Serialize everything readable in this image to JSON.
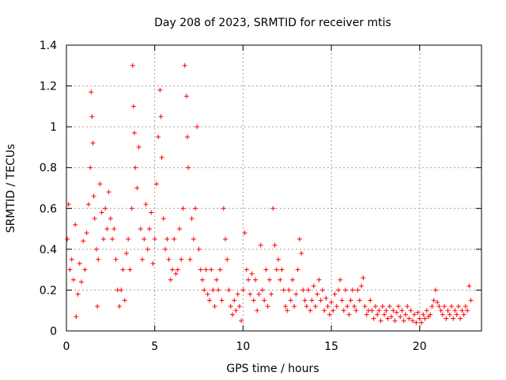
{
  "chart_data": {
    "type": "scatter",
    "title": "Day 208 of 2023, SRMTID for receiver mtis",
    "xlabel": "GPS time / hours",
    "ylabel": "SRMTID / TECUs",
    "xlim": [
      0,
      23.5
    ],
    "ylim": [
      0,
      1.4
    ],
    "xticks": [
      0,
      5,
      10,
      15,
      20
    ],
    "xtick_labels": [
      "0",
      "5",
      "10",
      "15",
      "20"
    ],
    "yticks": [
      0,
      0.2,
      0.4,
      0.6,
      0.8,
      1.0,
      1.2,
      1.4
    ],
    "ytick_labels": [
      "0",
      "0.2",
      "0.4",
      "0.6",
      "0.8",
      "1",
      "1.2",
      "1.4"
    ],
    "grid": true,
    "marker": "+",
    "color": "#ff0000",
    "series": [
      {
        "name": "SRMTID",
        "points": [
          [
            0.05,
            0.45
          ],
          [
            0.12,
            0.62
          ],
          [
            0.2,
            0.3
          ],
          [
            0.3,
            0.35
          ],
          [
            0.4,
            0.25
          ],
          [
            0.5,
            0.52
          ],
          [
            0.55,
            0.07
          ],
          [
            0.65,
            0.18
          ],
          [
            0.75,
            0.33
          ],
          [
            0.85,
            0.24
          ],
          [
            0.95,
            0.44
          ],
          [
            1.05,
            0.3
          ],
          [
            1.15,
            0.48
          ],
          [
            1.25,
            0.62
          ],
          [
            1.35,
            0.8
          ],
          [
            1.4,
            1.17
          ],
          [
            1.45,
            1.05
          ],
          [
            1.5,
            0.92
          ],
          [
            1.55,
            0.66
          ],
          [
            1.6,
            0.55
          ],
          [
            1.7,
            0.4
          ],
          [
            1.75,
            0.12
          ],
          [
            1.8,
            0.35
          ],
          [
            1.9,
            0.72
          ],
          [
            2.0,
            0.58
          ],
          [
            2.1,
            0.45
          ],
          [
            2.2,
            0.6
          ],
          [
            2.3,
            0.5
          ],
          [
            2.4,
            0.68
          ],
          [
            2.5,
            0.55
          ],
          [
            2.6,
            0.45
          ],
          [
            2.7,
            0.5
          ],
          [
            2.8,
            0.35
          ],
          [
            2.9,
            0.2
          ],
          [
            3.0,
            0.12
          ],
          [
            3.1,
            0.2
          ],
          [
            3.2,
            0.3
          ],
          [
            3.3,
            0.15
          ],
          [
            3.4,
            0.38
          ],
          [
            3.5,
            0.45
          ],
          [
            3.6,
            0.3
          ],
          [
            3.7,
            0.6
          ],
          [
            3.75,
            1.3
          ],
          [
            3.8,
            1.1
          ],
          [
            3.85,
            0.97
          ],
          [
            3.9,
            0.8
          ],
          [
            4.0,
            0.7
          ],
          [
            4.1,
            0.9
          ],
          [
            4.2,
            0.5
          ],
          [
            4.3,
            0.35
          ],
          [
            4.4,
            0.45
          ],
          [
            4.5,
            0.62
          ],
          [
            4.6,
            0.4
          ],
          [
            4.7,
            0.5
          ],
          [
            4.8,
            0.58
          ],
          [
            4.9,
            0.33
          ],
          [
            5.0,
            0.45
          ],
          [
            5.1,
            0.72
          ],
          [
            5.2,
            0.95
          ],
          [
            5.3,
            1.18
          ],
          [
            5.35,
            1.05
          ],
          [
            5.4,
            0.85
          ],
          [
            5.5,
            0.55
          ],
          [
            5.6,
            0.4
          ],
          [
            5.7,
            0.45
          ],
          [
            5.8,
            0.35
          ],
          [
            5.9,
            0.25
          ],
          [
            6.0,
            0.3
          ],
          [
            6.1,
            0.45
          ],
          [
            6.2,
            0.28
          ],
          [
            6.3,
            0.3
          ],
          [
            6.4,
            0.5
          ],
          [
            6.5,
            0.35
          ],
          [
            6.6,
            0.6
          ],
          [
            6.7,
            1.3
          ],
          [
            6.8,
            1.15
          ],
          [
            6.85,
            0.95
          ],
          [
            6.9,
            0.8
          ],
          [
            7.0,
            0.35
          ],
          [
            7.1,
            0.55
          ],
          [
            7.2,
            0.45
          ],
          [
            7.3,
            0.6
          ],
          [
            7.4,
            1.0
          ],
          [
            7.5,
            0.4
          ],
          [
            7.6,
            0.3
          ],
          [
            7.7,
            0.25
          ],
          [
            7.8,
            0.2
          ],
          [
            7.9,
            0.3
          ],
          [
            8.0,
            0.18
          ],
          [
            8.1,
            0.15
          ],
          [
            8.2,
            0.3
          ],
          [
            8.3,
            0.2
          ],
          [
            8.4,
            0.12
          ],
          [
            8.5,
            0.25
          ],
          [
            8.6,
            0.2
          ],
          [
            8.7,
            0.3
          ],
          [
            8.8,
            0.15
          ],
          [
            8.9,
            0.6
          ],
          [
            9.0,
            0.45
          ],
          [
            9.1,
            0.35
          ],
          [
            9.2,
            0.2
          ],
          [
            9.3,
            0.12
          ],
          [
            9.4,
            0.08
          ],
          [
            9.5,
            0.15
          ],
          [
            9.6,
            0.1
          ],
          [
            9.7,
            0.18
          ],
          [
            9.8,
            0.12
          ],
          [
            9.9,
            0.05
          ],
          [
            10.0,
            0.2
          ],
          [
            10.1,
            0.48
          ],
          [
            10.2,
            0.3
          ],
          [
            10.3,
            0.25
          ],
          [
            10.4,
            0.18
          ],
          [
            10.5,
            0.28
          ],
          [
            10.6,
            0.15
          ],
          [
            10.7,
            0.25
          ],
          [
            10.8,
            0.1
          ],
          [
            10.9,
            0.18
          ],
          [
            11.0,
            0.42
          ],
          [
            11.1,
            0.2
          ],
          [
            11.2,
            0.15
          ],
          [
            11.3,
            0.3
          ],
          [
            11.4,
            0.12
          ],
          [
            11.5,
            0.25
          ],
          [
            11.6,
            0.18
          ],
          [
            11.7,
            0.6
          ],
          [
            11.8,
            0.42
          ],
          [
            11.9,
            0.3
          ],
          [
            12.0,
            0.35
          ],
          [
            12.1,
            0.25
          ],
          [
            12.2,
            0.3
          ],
          [
            12.3,
            0.2
          ],
          [
            12.4,
            0.12
          ],
          [
            12.5,
            0.1
          ],
          [
            12.6,
            0.2
          ],
          [
            12.7,
            0.15
          ],
          [
            12.8,
            0.25
          ],
          [
            12.9,
            0.12
          ],
          [
            13.0,
            0.18
          ],
          [
            13.1,
            0.3
          ],
          [
            13.2,
            0.45
          ],
          [
            13.3,
            0.38
          ],
          [
            13.4,
            0.2
          ],
          [
            13.5,
            0.15
          ],
          [
            13.6,
            0.12
          ],
          [
            13.7,
            0.2
          ],
          [
            13.8,
            0.1
          ],
          [
            13.9,
            0.15
          ],
          [
            14.0,
            0.22
          ],
          [
            14.1,
            0.12
          ],
          [
            14.2,
            0.18
          ],
          [
            14.3,
            0.25
          ],
          [
            14.4,
            0.15
          ],
          [
            14.5,
            0.2
          ],
          [
            14.6,
            0.1
          ],
          [
            14.7,
            0.16
          ],
          [
            14.8,
            0.12
          ],
          [
            14.9,
            0.08
          ],
          [
            15.0,
            0.14
          ],
          [
            15.1,
            0.1
          ],
          [
            15.2,
            0.18
          ],
          [
            15.3,
            0.12
          ],
          [
            15.4,
            0.2
          ],
          [
            15.5,
            0.25
          ],
          [
            15.6,
            0.15
          ],
          [
            15.7,
            0.1
          ],
          [
            15.8,
            0.2
          ],
          [
            15.9,
            0.12
          ],
          [
            16.0,
            0.08
          ],
          [
            16.1,
            0.15
          ],
          [
            16.2,
            0.2
          ],
          [
            16.3,
            0.12
          ],
          [
            16.4,
            0.1
          ],
          [
            16.5,
            0.2
          ],
          [
            16.6,
            0.15
          ],
          [
            16.7,
            0.22
          ],
          [
            16.8,
            0.26
          ],
          [
            16.9,
            0.12
          ],
          [
            17.0,
            0.08
          ],
          [
            17.1,
            0.1
          ],
          [
            17.2,
            0.15
          ],
          [
            17.3,
            0.1
          ],
          [
            17.4,
            0.06
          ],
          [
            17.5,
            0.12
          ],
          [
            17.6,
            0.08
          ],
          [
            17.7,
            0.1
          ],
          [
            17.8,
            0.05
          ],
          [
            17.9,
            0.12
          ],
          [
            18.0,
            0.08
          ],
          [
            18.1,
            0.1
          ],
          [
            18.2,
            0.06
          ],
          [
            18.3,
            0.12
          ],
          [
            18.4,
            0.07
          ],
          [
            18.5,
            0.1
          ],
          [
            18.6,
            0.05
          ],
          [
            18.7,
            0.09
          ],
          [
            18.8,
            0.12
          ],
          [
            18.9,
            0.07
          ],
          [
            19.0,
            0.1
          ],
          [
            19.1,
            0.05
          ],
          [
            19.2,
            0.08
          ],
          [
            19.3,
            0.12
          ],
          [
            19.4,
            0.06
          ],
          [
            19.5,
            0.1
          ],
          [
            19.6,
            0.05
          ],
          [
            19.7,
            0.08
          ],
          [
            19.8,
            0.04
          ],
          [
            19.9,
            0.09
          ],
          [
            20.0,
            0.06
          ],
          [
            20.1,
            0.04
          ],
          [
            20.2,
            0.08
          ],
          [
            20.3,
            0.06
          ],
          [
            20.4,
            0.1
          ],
          [
            20.5,
            0.07
          ],
          [
            20.6,
            0.08
          ],
          [
            20.7,
            0.12
          ],
          [
            20.8,
            0.15
          ],
          [
            20.9,
            0.2
          ],
          [
            21.0,
            0.14
          ],
          [
            21.1,
            0.12
          ],
          [
            21.2,
            0.1
          ],
          [
            21.3,
            0.08
          ],
          [
            21.4,
            0.12
          ],
          [
            21.5,
            0.06
          ],
          [
            21.6,
            0.1
          ],
          [
            21.7,
            0.08
          ],
          [
            21.8,
            0.12
          ],
          [
            21.9,
            0.06
          ],
          [
            22.0,
            0.1
          ],
          [
            22.1,
            0.08
          ],
          [
            22.2,
            0.12
          ],
          [
            22.3,
            0.06
          ],
          [
            22.4,
            0.1
          ],
          [
            22.5,
            0.08
          ],
          [
            22.6,
            0.12
          ],
          [
            22.7,
            0.1
          ],
          [
            22.8,
            0.22
          ],
          [
            22.9,
            0.15
          ]
        ]
      }
    ]
  }
}
